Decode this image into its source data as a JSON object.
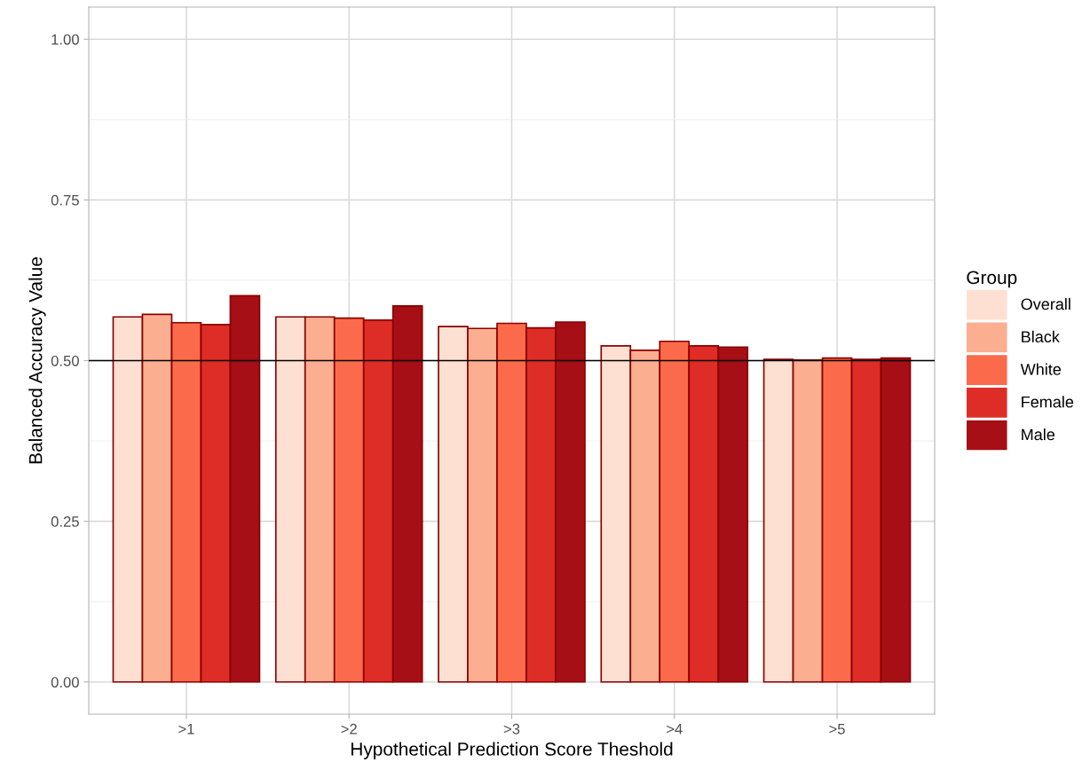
{
  "chart_data": {
    "type": "bar",
    "xlabel": "Hypothetical Prediction Score Theshold",
    "ylabel": "Balanced Accuracy Value",
    "legend_title": "Group",
    "categories": [
      ">1",
      ">2",
      ">3",
      ">4",
      ">5"
    ],
    "series": [
      {
        "name": "Overall",
        "color": "#fee0d2",
        "values": [
          0.568,
          0.568,
          0.553,
          0.523,
          0.502
        ]
      },
      {
        "name": "Black",
        "color": "#fcae91",
        "values": [
          0.572,
          0.568,
          0.55,
          0.516,
          0.501
        ]
      },
      {
        "name": "White",
        "color": "#fb6a4a",
        "values": [
          0.559,
          0.566,
          0.558,
          0.53,
          0.504
        ]
      },
      {
        "name": "Female",
        "color": "#de2d26",
        "values": [
          0.556,
          0.563,
          0.551,
          0.523,
          0.502
        ]
      },
      {
        "name": "Male",
        "color": "#a50f15",
        "values": [
          0.601,
          0.585,
          0.56,
          0.521,
          0.504
        ]
      }
    ],
    "ylim": [
      -0.05,
      1.05
    ],
    "yticks": [
      {
        "value": 0,
        "label": "0.00"
      },
      {
        "value": 0.25,
        "label": "0.25"
      },
      {
        "value": 0.5,
        "label": "0.50"
      },
      {
        "value": 0.75,
        "label": "0.75"
      },
      {
        "value": 1,
        "label": "1.00"
      }
    ],
    "ref_lines": [
      {
        "axis": "y",
        "value": 0.5,
        "color": "#000000"
      }
    ],
    "grid": true,
    "legend": "right"
  }
}
